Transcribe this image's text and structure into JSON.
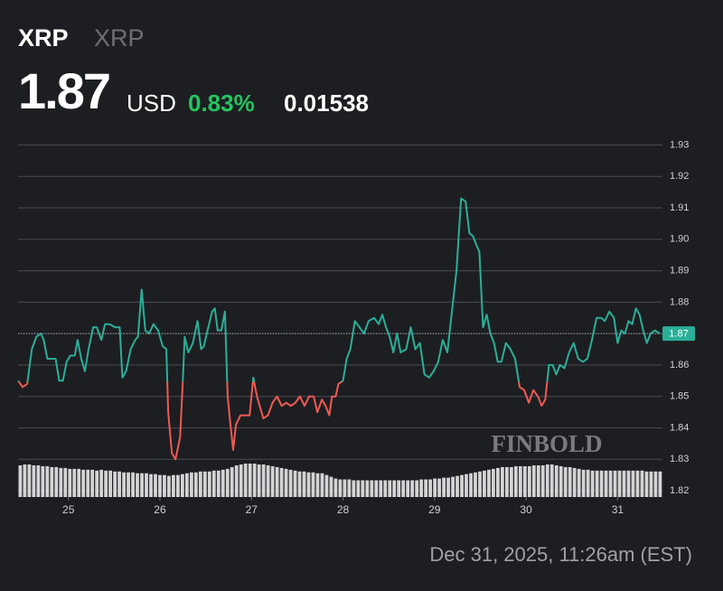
{
  "header": {
    "symbol": "XRP",
    "name": "XRP",
    "price": "1.87",
    "currency": "USD",
    "change_percent": "0.83%",
    "change": "0.01538"
  },
  "footer": {
    "timestamp": "Dec 31, 2025, 11:26am (EST)",
    "watermark": "FINBOLD"
  },
  "chart_data": {
    "type": "line",
    "x": [
      24.45,
      24.5,
      24.55,
      24.6,
      24.65,
      24.7,
      24.73,
      24.77,
      24.82,
      24.86,
      24.9,
      24.94,
      24.98,
      25.02,
      25.07,
      25.1,
      25.14,
      25.18,
      25.22,
      25.27,
      25.31,
      25.36,
      25.4,
      25.45,
      25.51,
      25.56,
      25.59,
      25.63,
      25.68,
      25.73,
      25.76,
      25.8,
      25.84,
      25.88,
      25.93,
      25.98,
      26.03,
      26.07,
      26.09,
      26.13,
      26.17,
      26.22,
      26.25,
      26.27,
      26.31,
      26.36,
      26.41,
      26.45,
      26.48,
      26.52,
      26.57,
      26.6,
      26.63,
      26.67,
      26.71,
      26.74,
      26.77,
      26.8,
      26.83,
      26.88,
      26.94,
      26.98,
      27.02,
      27.06,
      27.1,
      27.13,
      27.18,
      27.23,
      27.28,
      27.33,
      27.38,
      27.43,
      27.48,
      27.53,
      27.58,
      27.63,
      27.68,
      27.72,
      27.77,
      27.81,
      27.85,
      27.88,
      27.92,
      27.95,
      28.0,
      28.04,
      28.08,
      28.13,
      28.18,
      28.23,
      28.28,
      28.34,
      28.39,
      28.43,
      28.47,
      28.51,
      28.55,
      28.59,
      28.63,
      28.69,
      28.74,
      28.79,
      28.84,
      28.89,
      28.94,
      28.99,
      29.04,
      29.09,
      29.14,
      29.19,
      29.24,
      29.29,
      29.34,
      29.38,
      29.42,
      29.46,
      29.49,
      29.53,
      29.57,
      29.61,
      29.65,
      29.69,
      29.73,
      29.78,
      29.83,
      29.88,
      29.93,
      29.98,
      30.03,
      30.08,
      30.13,
      30.17,
      30.21,
      30.25,
      30.29,
      30.33,
      30.37,
      30.42,
      30.47,
      30.52,
      30.57,
      30.62,
      30.67,
      30.72,
      30.77,
      30.82,
      30.86,
      30.91,
      30.96,
      31.0,
      31.04,
      31.08,
      31.12,
      31.16,
      31.2,
      31.24,
      31.28,
      31.32,
      31.36,
      31.41,
      31.46
    ],
    "series": [
      {
        "name": "XRP",
        "color": "#2bae98",
        "down_color": "#ef5a52",
        "values": [
          1.855,
          1.853,
          1.854,
          1.865,
          1.869,
          1.87,
          1.868,
          1.862,
          1.862,
          1.862,
          1.855,
          1.855,
          1.861,
          1.863,
          1.863,
          1.868,
          1.862,
          1.858,
          1.865,
          1.872,
          1.872,
          1.868,
          1.873,
          1.873,
          1.872,
          1.872,
          1.856,
          1.858,
          1.865,
          1.868,
          1.869,
          1.884,
          1.871,
          1.87,
          1.873,
          1.871,
          1.866,
          1.865,
          1.845,
          1.832,
          1.83,
          1.837,
          1.855,
          1.869,
          1.864,
          1.867,
          1.874,
          1.865,
          1.866,
          1.871,
          1.877,
          1.878,
          1.871,
          1.871,
          1.877,
          1.85,
          1.841,
          1.833,
          1.841,
          1.844,
          1.844,
          1.844,
          1.856,
          1.85,
          1.846,
          1.843,
          1.844,
          1.848,
          1.85,
          1.847,
          1.848,
          1.847,
          1.848,
          1.85,
          1.847,
          1.85,
          1.85,
          1.845,
          1.849,
          1.847,
          1.844,
          1.85,
          1.85,
          1.854,
          1.855,
          1.862,
          1.865,
          1.874,
          1.872,
          1.87,
          1.874,
          1.875,
          1.873,
          1.876,
          1.872,
          1.869,
          1.864,
          1.87,
          1.864,
          1.865,
          1.872,
          1.865,
          1.867,
          1.857,
          1.856,
          1.858,
          1.861,
          1.868,
          1.864,
          1.877,
          1.89,
          1.913,
          1.912,
          1.902,
          1.901,
          1.898,
          1.896,
          1.872,
          1.876,
          1.87,
          1.867,
          1.861,
          1.861,
          1.867,
          1.865,
          1.862,
          1.853,
          1.852,
          1.848,
          1.852,
          1.85,
          1.847,
          1.849,
          1.86,
          1.86,
          1.857,
          1.86,
          1.859,
          1.864,
          1.867,
          1.862,
          1.861,
          1.862,
          1.868,
          1.875,
          1.875,
          1.874,
          1.877,
          1.875,
          1.867,
          1.871,
          1.87,
          1.874,
          1.873,
          1.878,
          1.876,
          1.871,
          1.867,
          1.87,
          1.871,
          1.87
        ]
      }
    ],
    "volume": {
      "color": "#d4d4d6",
      "values": [
        36,
        37,
        37,
        36,
        36,
        35,
        35,
        34,
        34,
        33,
        33,
        32,
        32,
        32,
        31,
        31,
        31,
        30,
        31,
        30,
        30,
        29,
        29,
        28,
        28,
        28,
        27,
        27,
        27,
        26,
        26,
        25,
        25,
        24,
        25,
        25,
        26,
        27,
        28,
        28,
        29,
        29,
        29,
        30,
        30,
        31,
        32,
        34,
        36,
        37,
        38,
        38,
        38,
        37,
        37,
        36,
        35,
        34,
        33,
        32,
        31,
        30,
        29,
        29,
        28,
        28,
        27,
        27,
        25,
        23,
        21,
        20,
        20,
        20,
        19,
        19,
        19,
        19,
        19,
        19,
        19,
        19,
        19,
        19,
        19,
        19,
        19,
        19,
        19,
        20,
        20,
        20,
        21,
        21,
        22,
        22,
        23,
        24,
        25,
        26,
        27,
        28,
        29,
        30,
        31,
        32,
        33,
        34,
        34,
        34,
        35,
        35,
        35,
        35,
        36,
        36,
        36,
        37,
        37,
        36,
        35,
        34,
        34,
        33,
        32,
        31,
        31,
        30,
        30,
        30,
        30,
        30,
        30,
        30,
        30,
        30,
        30,
        30,
        30,
        29,
        29,
        29,
        29
      ]
    },
    "xlim": [
      24.45,
      31.49
    ],
    "xticks": [
      25,
      26,
      27,
      28,
      29,
      30,
      31
    ],
    "ylim": [
      1.818,
      1.933
    ],
    "yticks": [
      1.82,
      1.83,
      1.84,
      1.85,
      1.86,
      1.87,
      1.88,
      1.89,
      {
        "value": 1.9,
        "label": "1.90"
      },
      1.91,
      1.92,
      1.93
    ],
    "grid": true
  }
}
